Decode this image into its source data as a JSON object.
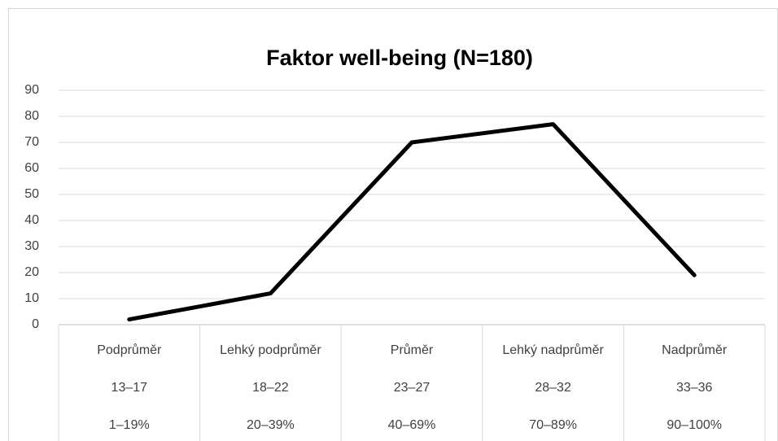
{
  "chart_data": {
    "type": "line",
    "title": "Faktor well-being (N=180)",
    "categories": [
      [
        "Podprůměr",
        "13–17",
        "1–19%"
      ],
      [
        "Lehký podprůměr",
        "18–22",
        "20–39%"
      ],
      [
        "Průměr",
        "23–27",
        "40–69%"
      ],
      [
        "Lehký nadprůměr",
        "28–32",
        "70–89%"
      ],
      [
        "Nadprůměr",
        "33–36",
        "90–100%"
      ]
    ],
    "series": [
      {
        "color": "#000000",
        "values": [
          2,
          12,
          70,
          77,
          19
        ]
      }
    ],
    "ylim": [
      0,
      90
    ],
    "yticks": [
      0,
      10,
      20,
      30,
      40,
      50,
      60,
      70,
      80,
      90
    ],
    "grid": true
  }
}
